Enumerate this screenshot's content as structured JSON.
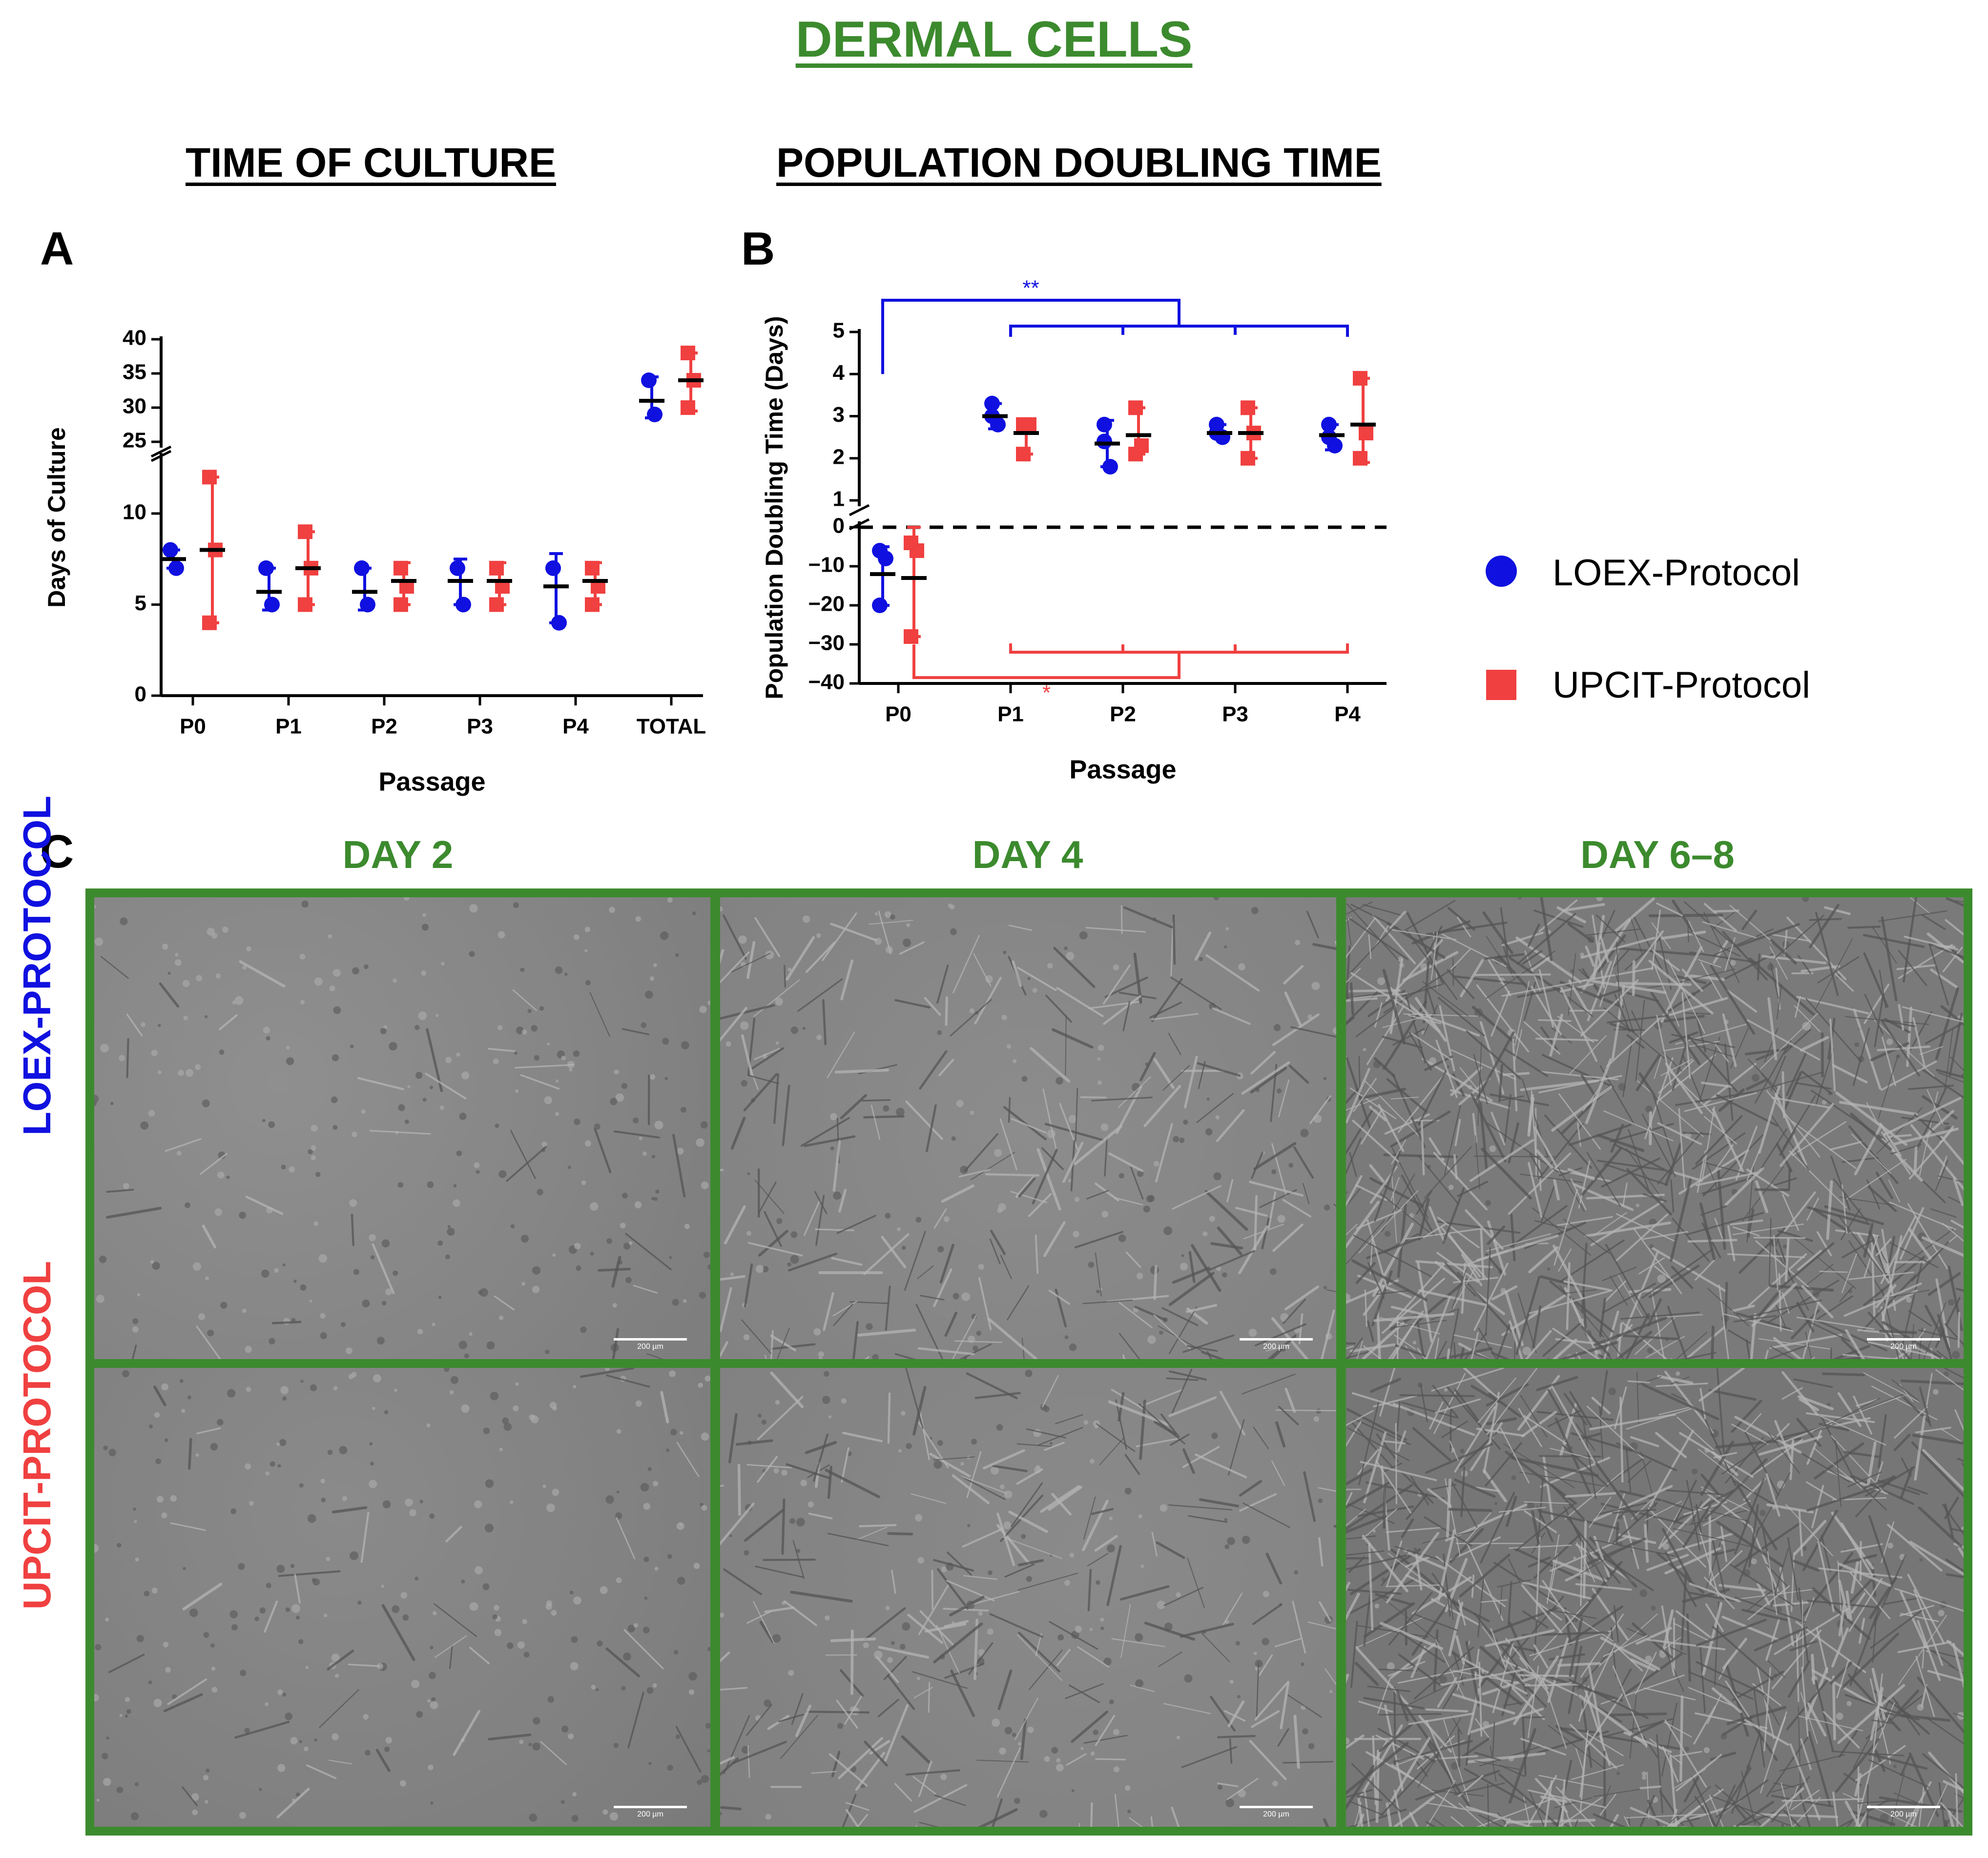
{
  "figure": {
    "title": "DERMAL CELLS",
    "subtitle_a": "TIME OF CULTURE",
    "subtitle_b": "POPULATION DOUBLING TIME",
    "panel_a": "A",
    "panel_b": "B",
    "panel_c": "C"
  },
  "legend": {
    "items": [
      {
        "label": "LOEX-Protocol",
        "color": "#1010e0",
        "marker": "circle"
      },
      {
        "label": "UPCIT-Protocol",
        "color": "#f04040",
        "marker": "square"
      }
    ]
  },
  "colors": {
    "loex": "#1010e0",
    "upcit": "#f04040",
    "green": "#3c8a2e"
  },
  "chart_data": [
    {
      "type": "scatter",
      "panel": "A",
      "xlabel": "Passage",
      "ylabel": "Days of Culture",
      "categories": [
        "P0",
        "P1",
        "P2",
        "P3",
        "P4",
        "TOTAL"
      ],
      "y_axis_break": {
        "lower": [
          0,
          13
        ],
        "upper": [
          25,
          40
        ]
      },
      "lower_ticks": [
        0,
        5,
        10
      ],
      "upper_ticks": [
        25,
        30,
        35,
        40
      ],
      "series": [
        {
          "name": "LOEX-Protocol",
          "points": [
            [
              8,
              7
            ],
            [
              7,
              5
            ],
            [
              7,
              5
            ],
            [
              7,
              5
            ],
            [
              7,
              4
            ],
            [
              34,
              29
            ]
          ],
          "mean": [
            7.5,
            5.7,
            5.7,
            6.3,
            6,
            31
          ],
          "range": [
            [
              7,
              8
            ],
            [
              4.7,
              7
            ],
            [
              4.7,
              7
            ],
            [
              5,
              7.5
            ],
            [
              4,
              7.8
            ],
            [
              28.5,
              34.5
            ]
          ]
        },
        {
          "name": "UPCIT-Protocol",
          "points": [
            [
              12,
              8,
              4
            ],
            [
              9,
              7,
              5
            ],
            [
              7,
              6,
              5
            ],
            [
              7,
              6,
              5
            ],
            [
              7,
              6,
              5
            ],
            [
              38,
              34,
              30
            ]
          ],
          "mean": [
            8,
            7,
            6.3,
            6.3,
            6.3,
            34
          ],
          "range": [
            [
              4,
              12
            ],
            [
              5,
              9
            ],
            [
              5,
              7.3
            ],
            [
              5,
              7.3
            ],
            [
              5,
              7.3
            ],
            [
              29.5,
              38
            ]
          ]
        }
      ]
    },
    {
      "type": "scatter",
      "panel": "B",
      "xlabel": "Passage",
      "ylabel": "Population Doubling Time (Days)",
      "categories": [
        "P0",
        "P1",
        "P2",
        "P3",
        "P4"
      ],
      "y_axis_break": {
        "lower": [
          -40,
          0
        ],
        "upper": [
          1,
          5
        ]
      },
      "lower_ticks": [
        -40,
        -30,
        -20,
        -10,
        0
      ],
      "upper_ticks": [
        1,
        2,
        3,
        4,
        5
      ],
      "reference_line": 0,
      "series": [
        {
          "name": "LOEX-Protocol",
          "points": [
            [
              -6,
              -8,
              -20
            ],
            [
              3.3,
              2.8,
              3.0
            ],
            [
              2.8,
              1.8,
              2.4
            ],
            [
              2.8,
              2.5,
              2.6
            ],
            [
              2.8,
              2.3,
              2.5
            ]
          ],
          "mean": [
            -12,
            3.0,
            2.35,
            2.6,
            2.55
          ],
          "range": [
            [
              -20,
              -5
            ],
            [
              2.7,
              3.3
            ],
            [
              1.8,
              2.9
            ],
            [
              2.5,
              2.8
            ],
            [
              2.2,
              2.8
            ]
          ]
        },
        {
          "name": "UPCIT-Protocol",
          "points": [
            [
              -4,
              -6,
              -28
            ],
            [
              2.8,
              2.8,
              2.1
            ],
            [
              3.2,
              2.3,
              2.1
            ],
            [
              3.2,
              2.6,
              2.0
            ],
            [
              3.9,
              2.6,
              2.0
            ]
          ],
          "mean": [
            -13,
            2.6,
            2.55,
            2.6,
            2.8
          ],
          "range": [
            [
              -28,
              0
            ],
            [
              2.1,
              2.9
            ],
            [
              2.1,
              3.2
            ],
            [
              2.0,
              3.2
            ],
            [
              1.9,
              3.9
            ]
          ]
        }
      ],
      "significance": [
        {
          "label": "**",
          "series": "LOEX-Protocol",
          "from": "P0",
          "to": [
            "P1",
            "P2",
            "P3",
            "P4"
          ]
        },
        {
          "label": "*",
          "series": "UPCIT-Protocol",
          "from": "P0",
          "to": [
            "P1",
            "P2",
            "P3",
            "P4"
          ]
        }
      ]
    }
  ],
  "micrographs": {
    "columns": [
      "DAY 2",
      "DAY 4",
      "DAY 6–8"
    ],
    "rows": [
      {
        "label": "LOEX-PROTOCOL",
        "color": "#1010e0"
      },
      {
        "label": "UPCIT-PROTOCOL",
        "color": "#f04040"
      }
    ],
    "scale_label": "200 µm"
  }
}
